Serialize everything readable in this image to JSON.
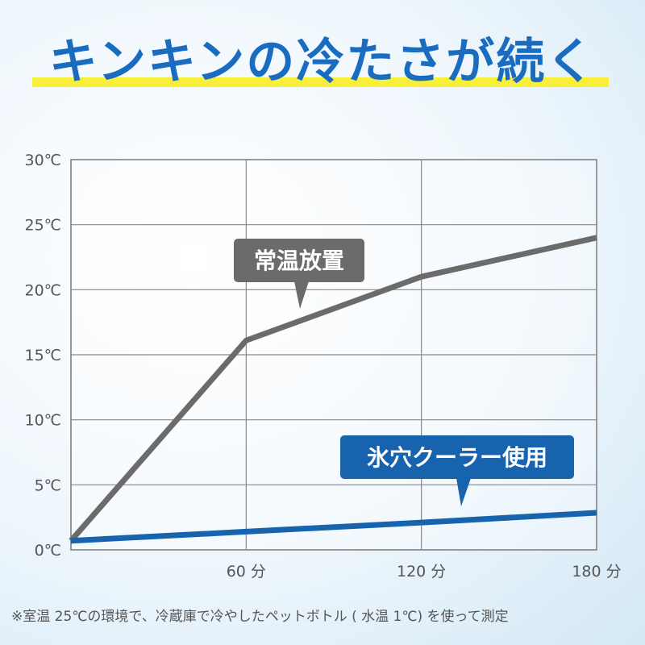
{
  "chart_data": {
    "type": "line",
    "title": "キンキンの冷たさが続く",
    "note": "※室温 25℃の環境で、冷蔵庫で冷やしたペットボトル ( 水温 1℃) を使って測定",
    "x": [
      0,
      60,
      120,
      180
    ],
    "series": [
      {
        "name": "常温放置",
        "color": "#6b6b6b",
        "values": [
          0.7,
          16.1,
          21.0,
          24.0
        ]
      },
      {
        "name": "氷穴クーラー使用",
        "color": "#1763ad",
        "values": [
          0.7,
          1.4,
          2.1,
          2.85
        ]
      }
    ],
    "xlim": [
      0,
      180
    ],
    "xticks": [
      {
        "value": 60,
        "label": "60 分"
      },
      {
        "value": 120,
        "label": "120 分"
      },
      {
        "value": 180,
        "label": "180 分"
      }
    ],
    "ylim": [
      0,
      30
    ],
    "yticks": [
      {
        "value": 0,
        "label": "0℃"
      },
      {
        "value": 5,
        "label": "5℃"
      },
      {
        "value": 10,
        "label": "10℃"
      },
      {
        "value": 15,
        "label": "15℃"
      },
      {
        "value": 20,
        "label": "20℃"
      },
      {
        "value": 25,
        "label": "25℃"
      },
      {
        "value": 30,
        "label": "30℃"
      }
    ],
    "grid": true
  }
}
